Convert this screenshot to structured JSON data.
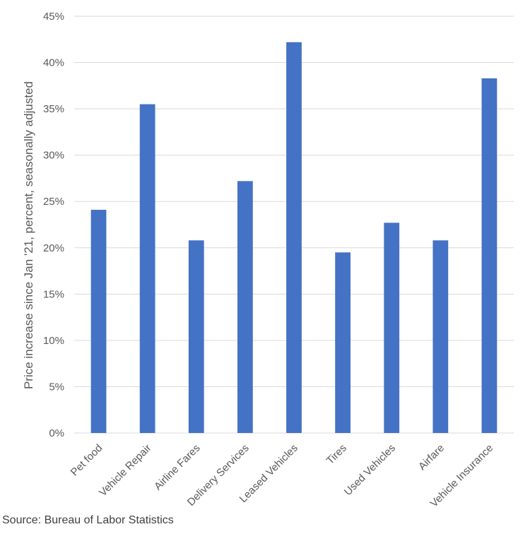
{
  "chart_data": {
    "type": "bar",
    "title": "",
    "xlabel": "",
    "ylabel": "Price increase since Jan '21, percent, seasonally adjusted",
    "categories": [
      "Pet food",
      "Vehicle Repair",
      "Airline Fares",
      "Delivery Services",
      "Leased Vehicles",
      "Tires",
      "Used Vehicles",
      "Airfare",
      "Vehicle Insurance"
    ],
    "values": [
      24.1,
      35.5,
      20.8,
      27.2,
      42.2,
      19.5,
      22.7,
      20.8,
      38.3
    ],
    "ylim": [
      0,
      45
    ],
    "yticks": [
      0,
      5,
      10,
      15,
      20,
      25,
      30,
      35,
      40,
      45
    ],
    "ytick_labels": [
      "0%",
      "5%",
      "10%",
      "15%",
      "20%",
      "25%",
      "30%",
      "35%",
      "40%",
      "45%"
    ],
    "grid": true,
    "legend": "none",
    "bar_color": "#4472C4",
    "grid_color": "#D9D9D9"
  },
  "source": "Source: Bureau of Labor Statistics"
}
